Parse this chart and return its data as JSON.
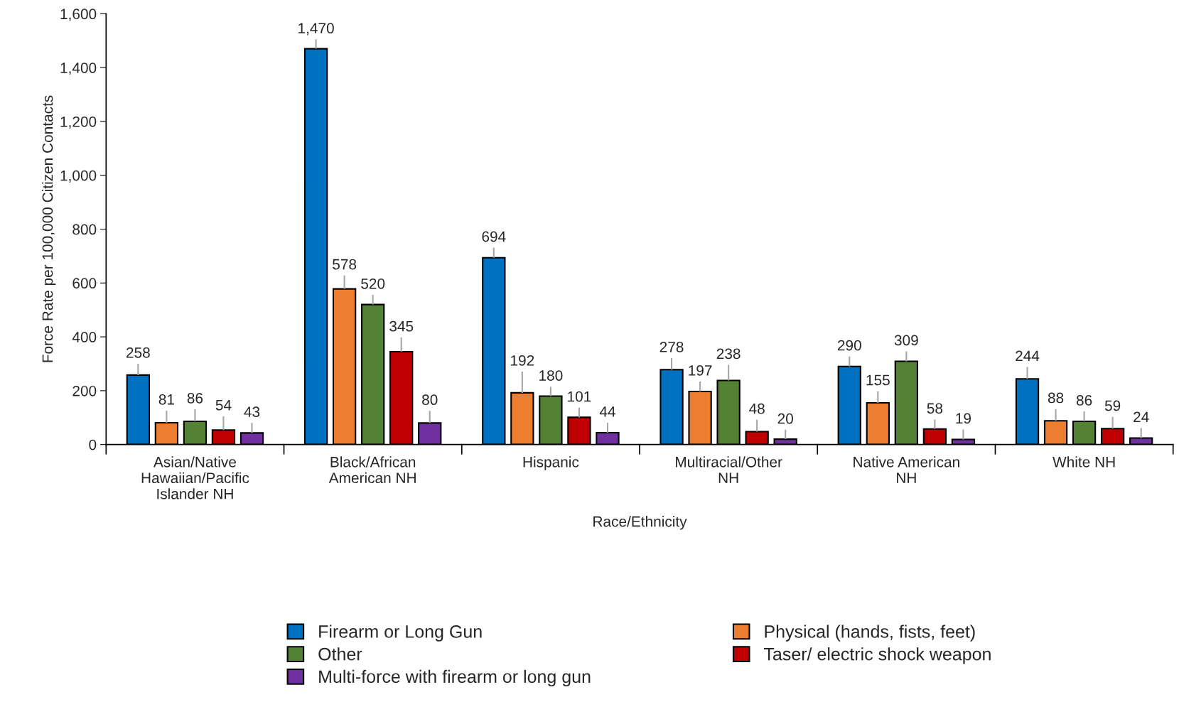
{
  "chart_data": {
    "type": "bar",
    "xlabel": "Race/Ethnicity",
    "ylabel": "Force Rate per 100,000 Citizen Contacts",
    "categories": [
      "Asian/Native\nHawaiian/Pacific\nIslander NH",
      "Black/African\nAmerican NH",
      "Hispanic",
      "Multiracial/Other\nNH",
      "Native American\nNH",
      "White NH"
    ],
    "series": [
      {
        "name": "Firearm or Long Gun",
        "color": "#0070c0",
        "values": [
          258,
          1470,
          694,
          278,
          290,
          244
        ],
        "value_labels": [
          "258",
          "1,470",
          "694",
          "278",
          "290",
          "244"
        ],
        "errors": [
          [
            258,
            300
          ],
          [
            1470,
            1505
          ],
          [
            694,
            731
          ],
          [
            278,
            321
          ],
          [
            290,
            327
          ],
          [
            244,
            288
          ]
        ]
      },
      {
        "name": "Physical (hands, fists, feet)",
        "color": "#ed7d31",
        "values": [
          81,
          578,
          192,
          197,
          155,
          88
        ],
        "errors": [
          [
            81,
            126
          ],
          [
            578,
            628
          ],
          [
            192,
            271
          ],
          [
            197,
            234
          ],
          [
            155,
            198
          ],
          [
            88,
            132
          ]
        ]
      },
      {
        "name": "Other",
        "color": "#548235",
        "values": [
          86,
          520,
          180,
          238,
          309,
          86
        ],
        "errors": [
          [
            86,
            131
          ],
          [
            520,
            556
          ],
          [
            180,
            215
          ],
          [
            238,
            296
          ],
          [
            309,
            346
          ],
          [
            86,
            123
          ]
        ]
      },
      {
        "name": "Taser/ electric shock weapon",
        "color": "#c00000",
        "values": [
          54,
          345,
          101,
          48,
          58,
          59
        ],
        "errors": [
          [
            54,
            105
          ],
          [
            345,
            398
          ],
          [
            101,
            137
          ],
          [
            48,
            92
          ],
          [
            58,
            93
          ],
          [
            59,
            103
          ]
        ]
      },
      {
        "name": "Multi-force with firearm or long gun",
        "color": "#7030a0",
        "values": [
          43,
          80,
          44,
          20,
          19,
          24
        ],
        "errors": [
          [
            43,
            80
          ],
          [
            80,
            125
          ],
          [
            44,
            81
          ],
          [
            20,
            55
          ],
          [
            19,
            56
          ],
          [
            24,
            61
          ]
        ]
      }
    ],
    "ylim": [
      0,
      1600
    ],
    "yticks": [
      0,
      200,
      400,
      600,
      800,
      {
        "value": 1000,
        "label": "1,000"
      },
      {
        "value": 1200,
        "label": "1,200"
      },
      {
        "value": 1400,
        "label": "1,400"
      },
      {
        "value": 1600,
        "label": "1,600"
      }
    ],
    "data_labels": true,
    "grid": false,
    "legend": "bottom"
  }
}
